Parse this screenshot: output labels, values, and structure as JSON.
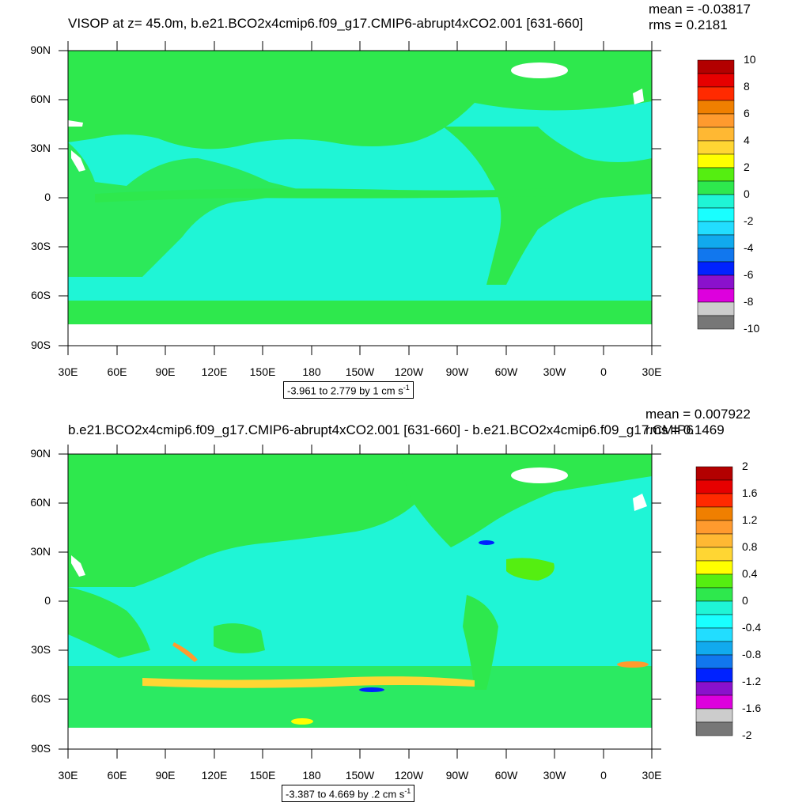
{
  "panels": [
    {
      "title": "VISOP at z=  45.0m, b.e21.BCO2x4cmip6.f09_g17.CMIP6-abrupt4xCO2.001 [631-660]",
      "mean_label": "mean = -0.03817",
      "rms_label": "rms = 0.2181",
      "range_label": "-3.961 to 2.779 by 1 cm s",
      "range_sup": "-1",
      "colorbar_labels": [
        "10",
        "8",
        "6",
        "4",
        "2",
        "0",
        "-2",
        "-4",
        "-6",
        "-8",
        "-10"
      ]
    },
    {
      "title": "b.e21.BCO2x4cmip6.f09_g17.CMIP6-abrupt4xCO2.001 [631-660] - b.e21.BCO2x4cmip6.f09_g17.CMIP6",
      "mean_label": "mean = 0.007922",
      "rms_label": "rms = 0.1469",
      "range_label": "-3.387 to 4.669 by .2 cm s",
      "range_sup": "-1",
      "colorbar_labels": [
        "2",
        "1.6",
        "1.2",
        "0.8",
        "0.4",
        "0",
        "-0.4",
        "-0.8",
        "-1.2",
        "-1.6",
        "-2"
      ]
    }
  ],
  "axes": {
    "lat_labels": [
      "90N",
      "60N",
      "30N",
      "0",
      "30S",
      "60S",
      "90S"
    ],
    "lon_labels": [
      "30E",
      "60E",
      "90E",
      "120E",
      "150E",
      "180",
      "150W",
      "120W",
      "90W",
      "60W",
      "30W",
      "0",
      "30E"
    ]
  },
  "colors": {
    "ocean_zero": "#2ee84d",
    "ocean_neg": "#1ff5d6",
    "land_mask": "#ffffff",
    "colorbar": [
      "#b30000",
      "#e60000",
      "#ff2a00",
      "#f07f00",
      "#ff9a2e",
      "#ffb833",
      "#ffd633",
      "#ffff00",
      "#55ee11",
      "#2ee84d",
      "#1ff5d6",
      "#19ffff",
      "#22ddff",
      "#11aaee",
      "#1177ee",
      "#0022ff",
      "#8a11cc",
      "#dd00dd",
      "#cccccc",
      "#777777"
    ]
  }
}
